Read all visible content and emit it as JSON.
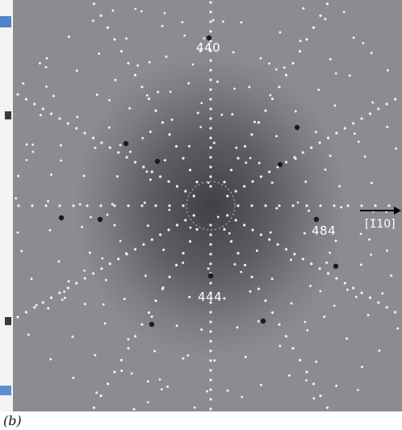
{
  "figure": {
    "panel_label_open": "(",
    "panel_label_letter": "b",
    "panel_label_close": ")",
    "reflections": [
      {
        "label": "440"
      },
      {
        "label": "444"
      },
      {
        "label": "484"
      }
    ],
    "direction_label": "[1̄10]",
    "colors": {
      "background": "#808285",
      "spot": "#f2f2f2",
      "strong_spot": "#1c1c1c",
      "arrow": "#000000"
    }
  }
}
